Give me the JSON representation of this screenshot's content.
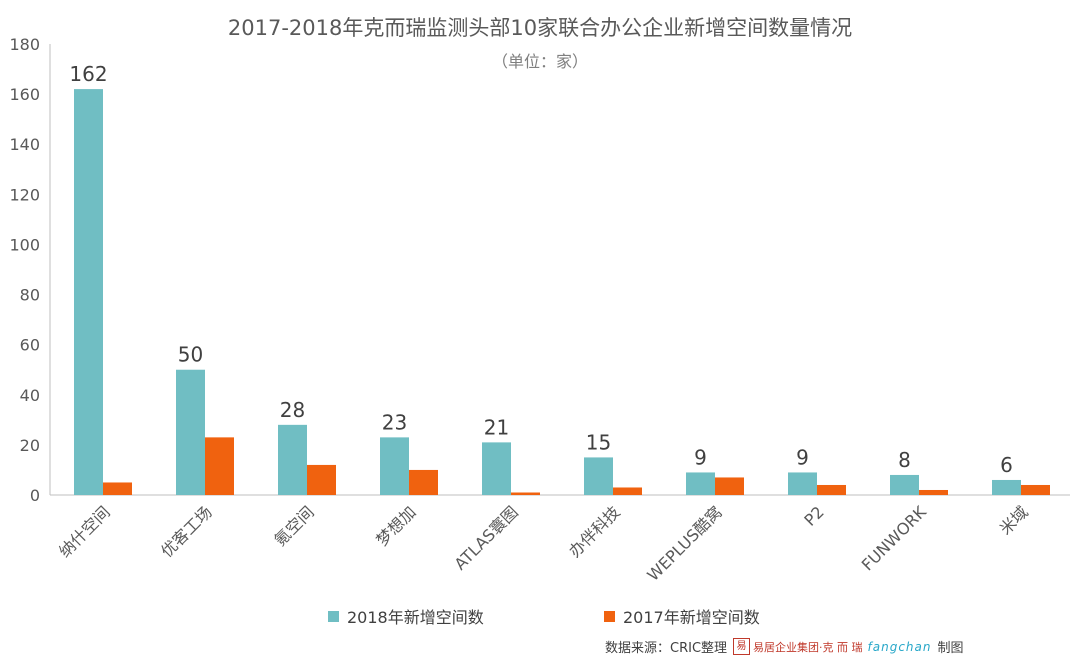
{
  "chart_data": {
    "type": "bar",
    "title": "2017-2018年克而瑞监测头部10家联合办公企业新增空间数量情况",
    "subtitle": "（单位：家）",
    "categories": [
      "纳什空间",
      "优客工场",
      "氪空间",
      "梦想加",
      "ATLAS寰图",
      "办伴科技",
      "WEPLUS酷窝",
      "P2",
      "FUNWORK",
      "米域"
    ],
    "series": [
      {
        "name": "2018年新增空间数",
        "color": "#70bec3",
        "values": [
          162,
          50,
          28,
          23,
          21,
          15,
          9,
          9,
          8,
          6
        ],
        "show_labels": true
      },
      {
        "name": "2017年新增空间数",
        "color": "#f0620f",
        "values": [
          5,
          23,
          12,
          10,
          1,
          3,
          7,
          4,
          2,
          4
        ],
        "show_labels": false
      }
    ],
    "ylim": [
      0,
      180
    ],
    "yticks": [
      0,
      20,
      40,
      60,
      80,
      100,
      120,
      140,
      160,
      180
    ],
    "xlabel": "",
    "ylabel": "",
    "grid": false,
    "legend_position": "bottom"
  },
  "source": {
    "label": "数据来源：CRIC整理",
    "logo1_mark": "易",
    "logo1_text": "易居企业集团·克 而 瑞",
    "logo2_text": "fangchan",
    "suffix": "制图"
  }
}
